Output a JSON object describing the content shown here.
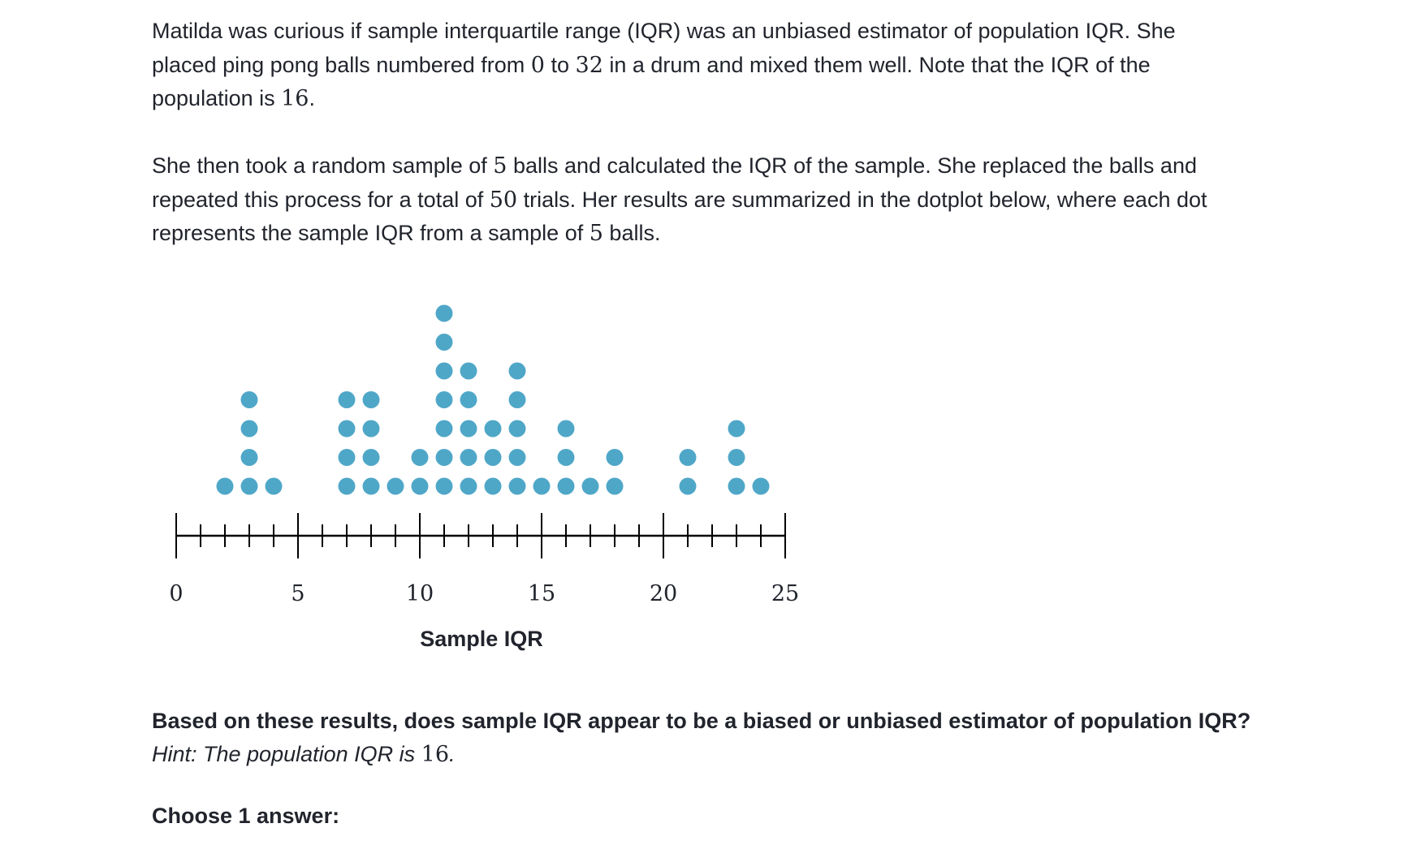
{
  "problem": {
    "p1": {
      "t1": "Matilda was curious if sample interquartile range (IQR) was an unbiased estimator of population IQR. She placed ping pong balls numbered from ",
      "n1": "0",
      "t2": " to ",
      "n2": "32",
      "t3": " in a drum and mixed them well. Note that the IQR of the population is ",
      "n3": "16",
      "t4": "."
    },
    "p2": {
      "t1": "She then took a random sample of ",
      "n1": "5",
      "t2": " balls and calculated the IQR of the sample. She replaced the balls and repeated this process for a total of ",
      "n2": "50",
      "t3": " trials. Her results are summarized in the dotplot below, where each dot represents the sample IQR from a sample of ",
      "n3": "5",
      "t4": " balls."
    }
  },
  "chart_data": {
    "type": "dotplot",
    "xlabel": "Sample IQR",
    "xlim": [
      0,
      25
    ],
    "major_ticks": [
      0,
      5,
      10,
      15,
      20,
      25
    ],
    "minor_tick_step": 1,
    "tick_labels": [
      "0",
      "5",
      "10",
      "15",
      "20",
      "25"
    ],
    "dot_color": "#4fa7c8",
    "points": [
      {
        "x": 2,
        "count": 1
      },
      {
        "x": 3,
        "count": 4
      },
      {
        "x": 4,
        "count": 1
      },
      {
        "x": 7,
        "count": 4
      },
      {
        "x": 8,
        "count": 4
      },
      {
        "x": 9,
        "count": 1
      },
      {
        "x": 10,
        "count": 2
      },
      {
        "x": 11,
        "count": 7
      },
      {
        "x": 12,
        "count": 5
      },
      {
        "x": 13,
        "count": 3
      },
      {
        "x": 14,
        "count": 5
      },
      {
        "x": 15,
        "count": 1
      },
      {
        "x": 16,
        "count": 3
      },
      {
        "x": 17,
        "count": 1
      },
      {
        "x": 18,
        "count": 2
      },
      {
        "x": 21,
        "count": 2
      },
      {
        "x": 23,
        "count": 3
      },
      {
        "x": 24,
        "count": 1
      }
    ]
  },
  "question": {
    "text": "Based on these results, does sample IQR appear to be a biased or unbiased estimator of population IQR?",
    "hint_text": "Hint: The population IQR is ",
    "hint_num": "16",
    "hint_end": "."
  },
  "choose_label": "Choose 1 answer:"
}
